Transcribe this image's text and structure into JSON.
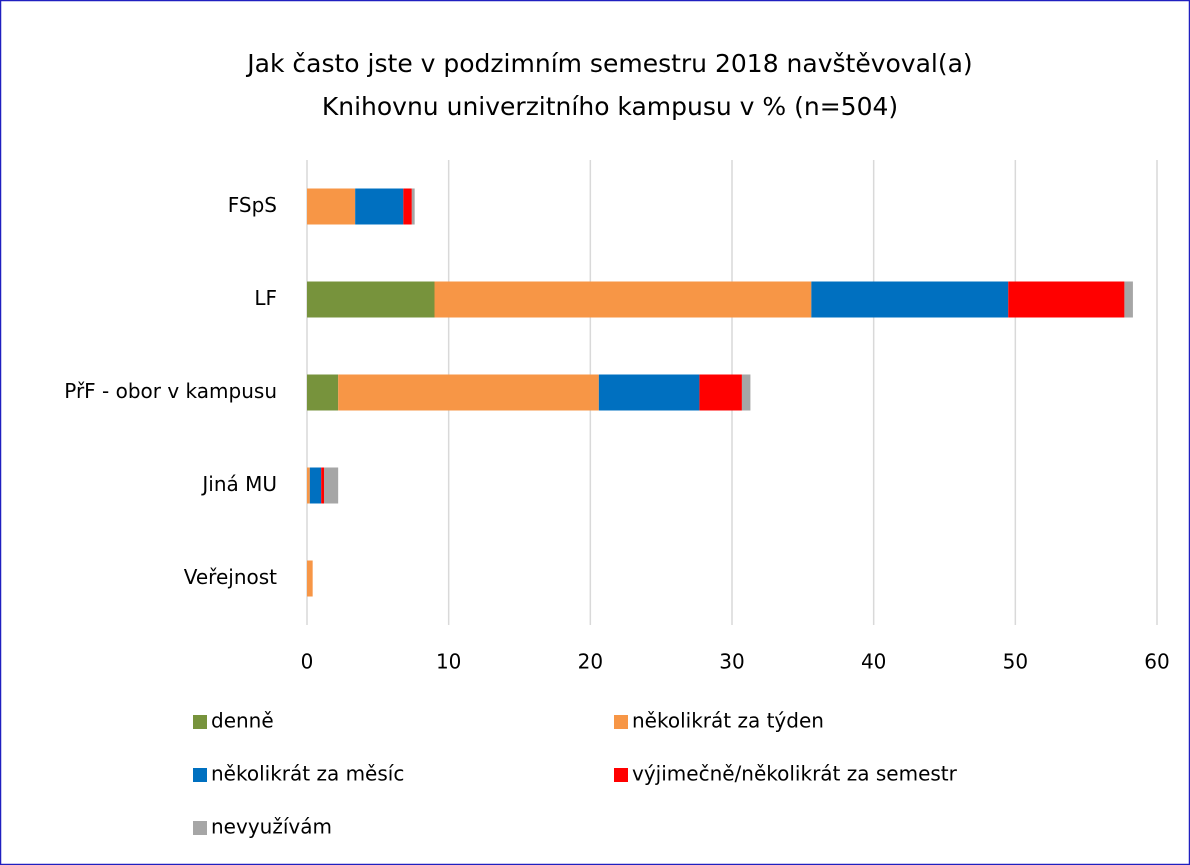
{
  "chart_data": {
    "type": "stacked-barh",
    "title": [
      "Jak často jste v podzimním semestru 2018 navštěvoval(a)",
      "Knihovnu univerzitního kampusu v % (n=504)"
    ],
    "categories": [
      "FSpS",
      "LF",
      "PřF - obor v kampusu",
      "Jiná MU",
      "Veřejnost"
    ],
    "series": [
      {
        "name": "denně",
        "color": "#77933c",
        "values": [
          0,
          9.0,
          2.2,
          0,
          0
        ]
      },
      {
        "name": "několikrát za týden",
        "color": "#f79646",
        "values": [
          3.4,
          26.6,
          18.4,
          0.2,
          0.4
        ]
      },
      {
        "name": "několikrát za měsíc",
        "color": "#0070c0",
        "values": [
          3.4,
          13.9,
          7.1,
          0.8,
          0
        ]
      },
      {
        "name": "výjimečně/několikrát za semestr",
        "color": "#ff0000",
        "values": [
          0.6,
          8.2,
          3.0,
          0.2,
          0
        ]
      },
      {
        "name": "nevyužívám",
        "color": "#a6a6a6",
        "values": [
          0.2,
          0.6,
          0.6,
          1.0,
          0
        ]
      }
    ],
    "xlim": [
      0,
      60
    ],
    "xticks": [
      0,
      10,
      20,
      30,
      40,
      50,
      60
    ],
    "grid": true
  }
}
